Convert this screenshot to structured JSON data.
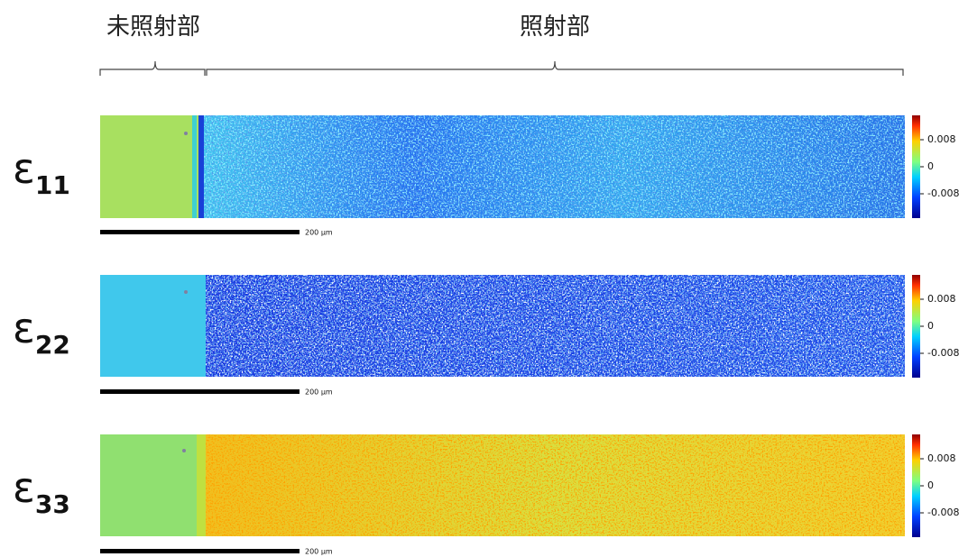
{
  "header": {
    "unirradiated": "未照射部",
    "irradiated": "照射部"
  },
  "panels": [
    {
      "symbol": "ε",
      "subscript": "11",
      "colorbar_ticks": [
        0.008,
        0,
        -0.008
      ],
      "scale_bar": "200 μm"
    },
    {
      "symbol": "ε",
      "subscript": "22",
      "colorbar_ticks": [
        0.008,
        0,
        -0.008
      ],
      "scale_bar": "200 μm"
    },
    {
      "symbol": "ε",
      "subscript": "33",
      "colorbar_ticks": [
        0.008,
        0,
        -0.008
      ],
      "scale_bar": "200 μm"
    }
  ]
}
